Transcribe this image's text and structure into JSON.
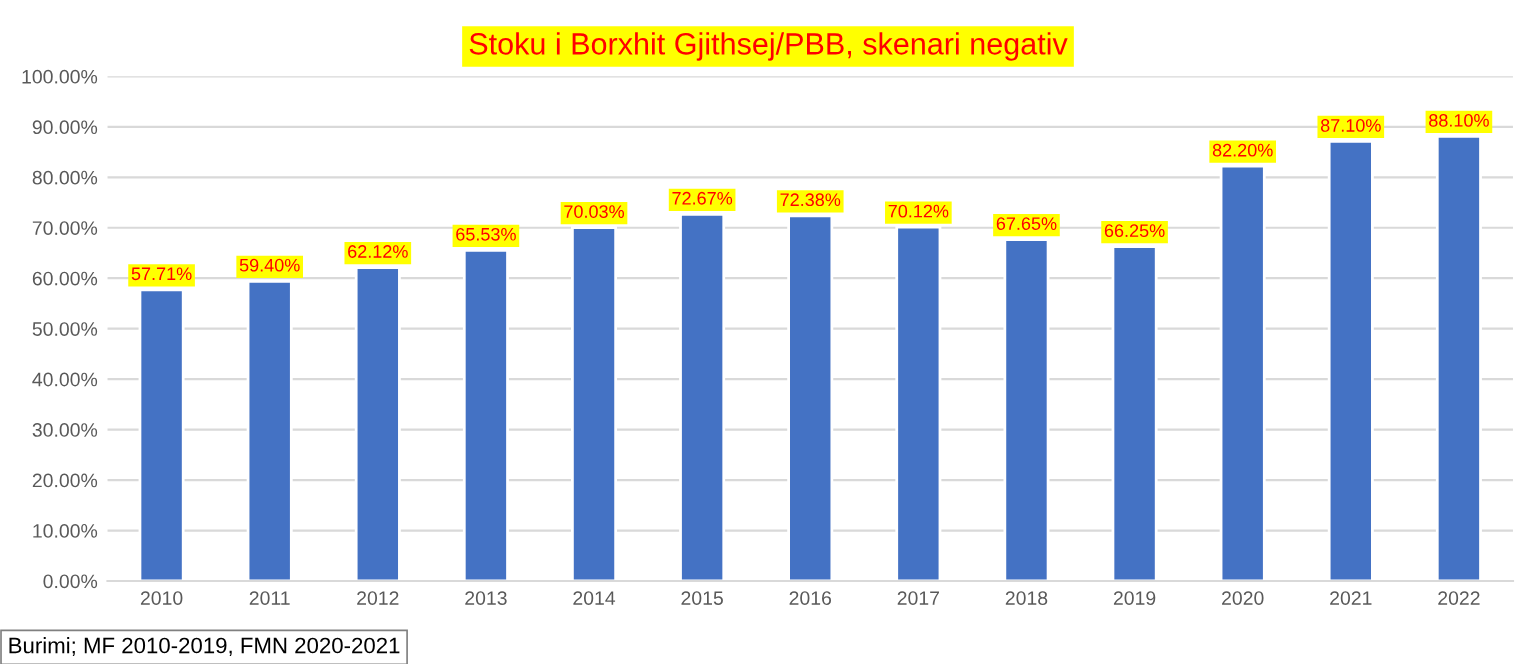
{
  "chart_data": {
    "type": "bar",
    "title": "Stoku i Borxhit Gjithsej/PBB, skenari negativ",
    "categories": [
      "2010",
      "2011",
      "2012",
      "2013",
      "2014",
      "2015",
      "2016",
      "2017",
      "2018",
      "2019",
      "2020",
      "2021",
      "2022"
    ],
    "values": [
      57.71,
      59.4,
      62.12,
      65.53,
      70.03,
      72.67,
      72.38,
      70.12,
      67.65,
      66.25,
      82.2,
      87.1,
      88.1
    ],
    "value_labels": [
      "57.71%",
      "59.40%",
      "62.12%",
      "65.53%",
      "70.03%",
      "72.67%",
      "72.38%",
      "70.12%",
      "67.65%",
      "66.25%",
      "82.20%",
      "87.10%",
      "88.10%"
    ],
    "color": "#4472c4",
    "ylim": [
      0,
      100
    ],
    "yticks": [
      {
        "value": 0,
        "label": "0.00%"
      },
      {
        "value": 10,
        "label": "10.00%"
      },
      {
        "value": 20,
        "label": "20.00%"
      },
      {
        "value": 30,
        "label": "30.00%"
      },
      {
        "value": 40,
        "label": "40.00%"
      },
      {
        "value": 50,
        "label": "50.00%"
      },
      {
        "value": 60,
        "label": "60.00%"
      },
      {
        "value": 70,
        "label": "70.00%"
      },
      {
        "value": 80,
        "label": "80.00%"
      },
      {
        "value": 90,
        "label": "90.00%"
      },
      {
        "value": 100,
        "label": "100.00%"
      }
    ],
    "grid": "y",
    "annotations": [
      "Burimi; MF 2010-2019, FMN 2020-2021"
    ]
  }
}
